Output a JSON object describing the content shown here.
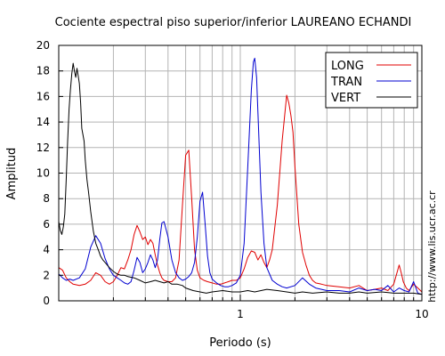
{
  "chart_data": {
    "type": "line",
    "title": "Cociente espectral piso superior/inferior LAUREANO ECHANDI",
    "xlabel": "Periodo (s)",
    "ylabel": "Amplitud",
    "x_scale": "log",
    "xlim": [
      0.1,
      10
    ],
    "ylim": [
      0,
      20
    ],
    "x_tick_labels": [
      {
        "value": 1,
        "label": "1"
      },
      {
        "value": 10,
        "label": "10"
      }
    ],
    "y_ticks": [
      0,
      2,
      4,
      6,
      8,
      10,
      12,
      14,
      16,
      18,
      20
    ],
    "grid": true,
    "legend_position": "top-right",
    "side_label": "http://www.lis.ucr.ac.cr",
    "series": [
      {
        "name": "LONG",
        "color": "#e00000",
        "x": [
          0.1,
          0.105,
          0.11,
          0.115,
          0.12,
          0.13,
          0.14,
          0.15,
          0.16,
          0.17,
          0.18,
          0.19,
          0.2,
          0.21,
          0.22,
          0.23,
          0.24,
          0.25,
          0.26,
          0.27,
          0.28,
          0.29,
          0.3,
          0.31,
          0.32,
          0.33,
          0.34,
          0.35,
          0.36,
          0.37,
          0.38,
          0.4,
          0.42,
          0.44,
          0.46,
          0.48,
          0.5,
          0.52,
          0.54,
          0.56,
          0.58,
          0.6,
          0.63,
          0.66,
          0.7,
          0.74,
          0.78,
          0.82,
          0.86,
          0.9,
          0.95,
          1.0,
          1.05,
          1.1,
          1.15,
          1.2,
          1.25,
          1.3,
          1.35,
          1.4,
          1.45,
          1.5,
          1.6,
          1.7,
          1.8,
          1.85,
          1.9,
          1.95,
          2.0,
          2.1,
          2.2,
          2.3,
          2.4,
          2.5,
          2.6,
          2.8,
          3.0,
          3.5,
          4.0,
          4.5,
          5.0,
          5.5,
          6.0,
          6.5,
          7.0,
          7.5,
          7.7,
          7.9,
          8.2,
          8.5,
          9.0,
          9.5,
          10.0
        ],
        "y": [
          2.6,
          2.4,
          1.8,
          1.5,
          1.3,
          1.2,
          1.3,
          1.6,
          2.2,
          2.0,
          1.5,
          1.3,
          1.5,
          2.0,
          2.6,
          2.5,
          3.2,
          4.0,
          5.2,
          5.9,
          5.4,
          4.8,
          5.0,
          4.4,
          4.8,
          4.5,
          3.6,
          2.8,
          2.2,
          1.8,
          1.6,
          1.5,
          1.5,
          1.8,
          3.2,
          7.5,
          11.4,
          11.8,
          8.0,
          4.0,
          2.4,
          1.8,
          1.6,
          1.5,
          1.4,
          1.3,
          1.3,
          1.4,
          1.5,
          1.6,
          1.6,
          1.8,
          2.5,
          3.4,
          3.9,
          3.8,
          3.2,
          3.6,
          3.0,
          2.6,
          3.2,
          4.0,
          7.5,
          12.5,
          16.1,
          15.5,
          14.5,
          13.2,
          10.5,
          6.0,
          3.8,
          2.8,
          2.0,
          1.6,
          1.4,
          1.3,
          1.2,
          1.1,
          1.0,
          1.2,
          0.8,
          0.9,
          1.0,
          0.8,
          1.3,
          2.8,
          2.2,
          1.5,
          1.0,
          0.8,
          1.3,
          1.0,
          0.7
        ]
      },
      {
        "name": "TRAN",
        "color": "#0000d0",
        "x": [
          0.1,
          0.105,
          0.11,
          0.115,
          0.12,
          0.13,
          0.14,
          0.15,
          0.16,
          0.17,
          0.18,
          0.19,
          0.2,
          0.21,
          0.22,
          0.23,
          0.24,
          0.25,
          0.26,
          0.27,
          0.28,
          0.29,
          0.3,
          0.31,
          0.32,
          0.33,
          0.34,
          0.35,
          0.36,
          0.37,
          0.38,
          0.4,
          0.42,
          0.44,
          0.46,
          0.48,
          0.5,
          0.52,
          0.54,
          0.56,
          0.58,
          0.6,
          0.62,
          0.64,
          0.66,
          0.68,
          0.7,
          0.74,
          0.78,
          0.82,
          0.86,
          0.9,
          0.95,
          1.0,
          1.05,
          1.1,
          1.15,
          1.18,
          1.2,
          1.23,
          1.26,
          1.3,
          1.35,
          1.4,
          1.5,
          1.6,
          1.7,
          1.8,
          2.0,
          2.2,
          2.4,
          2.6,
          2.8,
          3.0,
          3.5,
          4.0,
          4.5,
          5.0,
          5.5,
          6.0,
          6.5,
          7.0,
          7.5,
          8.0,
          8.5,
          9.0,
          9.5,
          10.0
        ],
        "y": [
          2.1,
          1.8,
          1.6,
          1.7,
          1.6,
          1.8,
          2.5,
          4.2,
          5.1,
          4.5,
          3.3,
          2.5,
          2.0,
          1.8,
          1.6,
          1.4,
          1.3,
          1.5,
          2.4,
          3.4,
          3.0,
          2.2,
          2.5,
          3.0,
          3.6,
          3.2,
          2.6,
          3.2,
          4.8,
          6.1,
          6.2,
          5.0,
          3.2,
          2.2,
          1.8,
          1.6,
          1.7,
          1.9,
          2.2,
          3.0,
          5.0,
          7.8,
          8.5,
          6.0,
          3.5,
          2.2,
          1.7,
          1.4,
          1.2,
          1.1,
          1.1,
          1.2,
          1.4,
          2.0,
          4.5,
          10.5,
          16.5,
          18.7,
          19.0,
          17.5,
          13.5,
          8.5,
          4.5,
          2.6,
          1.6,
          1.3,
          1.1,
          1.0,
          1.2,
          1.8,
          1.3,
          1.0,
          0.9,
          0.8,
          0.8,
          0.7,
          1.0,
          0.8,
          0.9,
          0.8,
          1.2,
          0.7,
          1.0,
          0.8,
          0.7,
          1.5,
          0.6,
          0.5
        ]
      },
      {
        "name": "VERT",
        "color": "#000000",
        "x": [
          0.1,
          0.102,
          0.104,
          0.106,
          0.108,
          0.11,
          0.112,
          0.114,
          0.116,
          0.118,
          0.12,
          0.122,
          0.124,
          0.126,
          0.128,
          0.13,
          0.132,
          0.134,
          0.136,
          0.138,
          0.14,
          0.143,
          0.146,
          0.15,
          0.155,
          0.16,
          0.165,
          0.17,
          0.175,
          0.18,
          0.19,
          0.2,
          0.21,
          0.22,
          0.23,
          0.24,
          0.26,
          0.28,
          0.3,
          0.32,
          0.34,
          0.36,
          0.38,
          0.4,
          0.42,
          0.45,
          0.48,
          0.5,
          0.55,
          0.6,
          0.65,
          0.7,
          0.8,
          0.9,
          1.0,
          1.1,
          1.2,
          1.4,
          1.6,
          1.8,
          2.0,
          2.2,
          2.5,
          3.0,
          3.5,
          4.0,
          4.5,
          5.0,
          6.0,
          7.0,
          8.0,
          9.0,
          10.0
        ],
        "y": [
          6.2,
          5.5,
          5.2,
          5.8,
          6.8,
          9.5,
          12.5,
          15.0,
          16.5,
          17.8,
          18.6,
          18.0,
          17.5,
          18.2,
          17.6,
          17.0,
          15.5,
          13.5,
          13.0,
          12.5,
          11.0,
          9.5,
          8.5,
          7.0,
          5.5,
          4.5,
          4.0,
          3.5,
          3.2,
          3.0,
          2.6,
          2.3,
          2.1,
          2.0,
          2.0,
          1.9,
          1.8,
          1.6,
          1.4,
          1.5,
          1.6,
          1.5,
          1.4,
          1.5,
          1.3,
          1.3,
          1.2,
          1.0,
          0.8,
          0.7,
          0.6,
          0.7,
          0.8,
          0.7,
          0.7,
          0.8,
          0.7,
          0.9,
          0.8,
          0.7,
          0.6,
          0.7,
          0.6,
          0.7,
          0.6,
          0.6,
          0.7,
          0.6,
          0.7,
          0.6,
          0.6,
          0.6,
          0.5
        ]
      }
    ]
  }
}
